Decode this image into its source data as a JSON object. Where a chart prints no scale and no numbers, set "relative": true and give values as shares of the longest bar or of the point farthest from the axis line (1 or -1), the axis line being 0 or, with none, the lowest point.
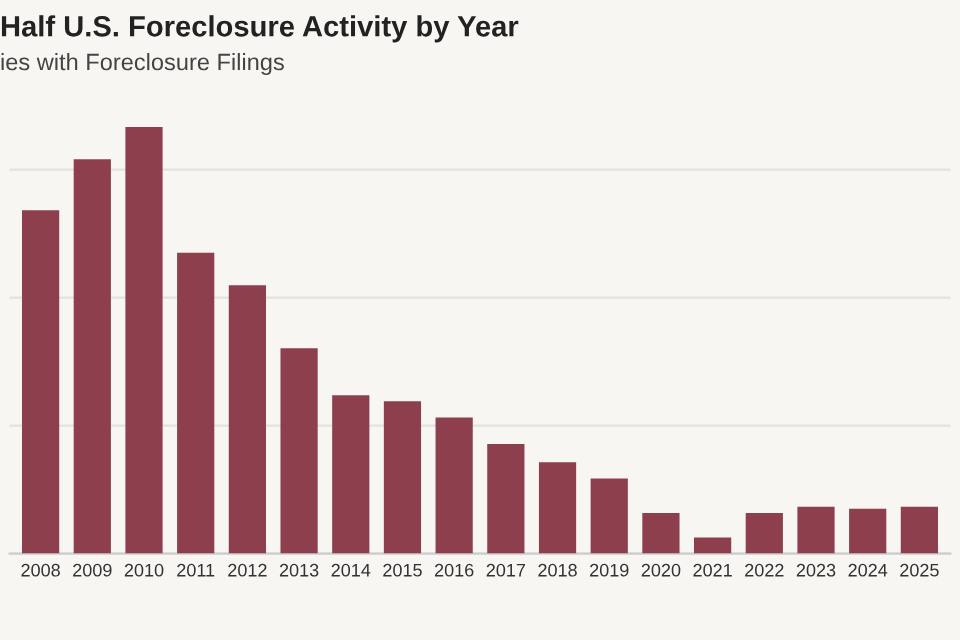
{
  "chart_data": {
    "type": "bar",
    "title": "Half U.S. Foreclosure Activity by Year",
    "subtitle": "ies with Foreclosure Filings",
    "categories": [
      "2008",
      "2009",
      "2010",
      "2011",
      "2012",
      "2013",
      "2014",
      "2015",
      "2016",
      "2017",
      "2018",
      "2019",
      "2020",
      "2021",
      "2022",
      "2023",
      "2024",
      "2025"
    ],
    "values": [
      0.805,
      0.924,
      1,
      0.705,
      0.629,
      0.481,
      0.371,
      0.357,
      0.319,
      0.257,
      0.214,
      0.176,
      0.095,
      0.038,
      0.095,
      0.11,
      0.105,
      0.11
    ],
    "color": "#8e3f4d",
    "relative": true,
    "grid": "y"
  }
}
